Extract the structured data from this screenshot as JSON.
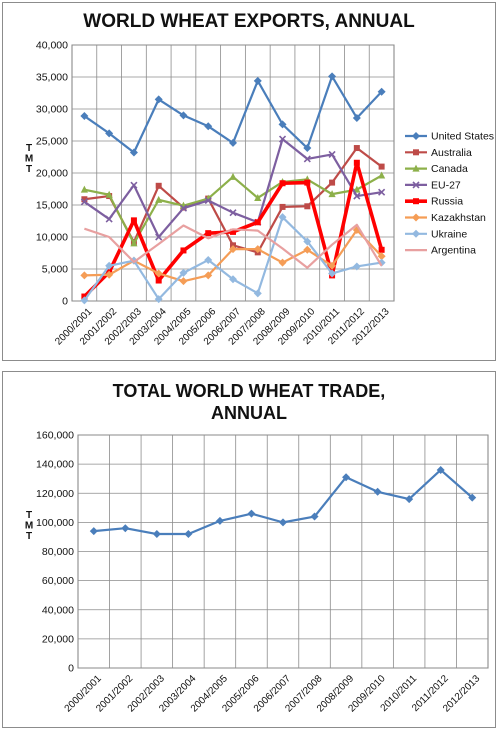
{
  "chart_data": [
    {
      "type": "line",
      "title": "WORLD WHEAT EXPORTS, ANNUAL",
      "ylabel": "TMT",
      "ylim": [
        0,
        40000
      ],
      "yticks": [
        "0",
        "5,000",
        "10,000",
        "15,000",
        "20,000",
        "25,000",
        "30,000",
        "35,000",
        "40,000"
      ],
      "grid": true,
      "legend": "right",
      "categories": [
        "2000/2001",
        "2001/2002",
        "2002/2003",
        "2003/2004",
        "2004/2005",
        "2005/2006",
        "2006/2007",
        "2007/2008",
        "2008/2009",
        "2009/2010",
        "2010/2011",
        "2011/2012",
        "2012/2013"
      ],
      "series": [
        {
          "name": "United States",
          "color": "#4a7ebb",
          "values": [
            28900,
            26200,
            23200,
            31500,
            29000,
            27300,
            24700,
            34400,
            27600,
            23900,
            35100,
            28600,
            32700
          ]
        },
        {
          "name": "Australia",
          "color": "#be4b48",
          "values": [
            15900,
            16400,
            9200,
            18000,
            14600,
            16000,
            8700,
            7600,
            14700,
            14800,
            18500,
            23900,
            21000
          ]
        },
        {
          "name": "Canada",
          "color": "#8db04a",
          "values": [
            17400,
            16600,
            9000,
            15800,
            14900,
            16000,
            19400,
            16100,
            18600,
            19000,
            16700,
            17400,
            19600
          ]
        },
        {
          "name": "EU-27",
          "color": "#7d5fa0",
          "values": [
            15500,
            12800,
            18100,
            10000,
            14500,
            15700,
            13800,
            12300,
            25300,
            22200,
            22900,
            16400,
            17000
          ]
        },
        {
          "name": "Russia",
          "color": "#ff0000",
          "values": [
            700,
            4500,
            12600,
            3200,
            7900,
            10600,
            10800,
            12300,
            18400,
            18500,
            4000,
            21600,
            8000
          ]
        },
        {
          "name": "Kazakhstan",
          "color": "#f59d56",
          "values": [
            4000,
            4100,
            6300,
            4300,
            3100,
            4000,
            8100,
            8100,
            6000,
            8000,
            5500,
            11100,
            7000
          ]
        },
        {
          "name": "Ukraine",
          "color": "#93b9e0",
          "values": [
            100,
            5500,
            6300,
            300,
            4400,
            6400,
            3400,
            1200,
            13100,
            9300,
            4300,
            5400,
            6000
          ]
        },
        {
          "name": "Argentina",
          "color": "#e8a0a0",
          "values": [
            11300,
            10000,
            6100,
            8900,
            11800,
            9800,
            11200,
            11000,
            8200,
            5200,
            8800,
            11900,
            5500
          ]
        }
      ]
    },
    {
      "type": "line",
      "title": "TOTAL WORLD WHEAT TRADE, ANNUAL",
      "ylabel": "TMT",
      "ylim": [
        0,
        160000
      ],
      "yticks": [
        "0",
        "20,000",
        "40,000",
        "60,000",
        "80,000",
        "100,000",
        "120,000",
        "140,000",
        "160,000"
      ],
      "grid": true,
      "categories": [
        "2000/2001",
        "2001/2002",
        "2002/2003",
        "2003/2004",
        "2004/2005",
        "2005/2006",
        "2006/2007",
        "2007/2008",
        "2008/2009",
        "2009/2010",
        "2010/2011",
        "2011/2012",
        "2012/2013"
      ],
      "series": [
        {
          "color": "#4a7ebb",
          "values": [
            94000,
            96000,
            92000,
            92000,
            101000,
            106000,
            100000,
            104000,
            131000,
            121000,
            116000,
            136000,
            117000
          ]
        }
      ]
    }
  ]
}
